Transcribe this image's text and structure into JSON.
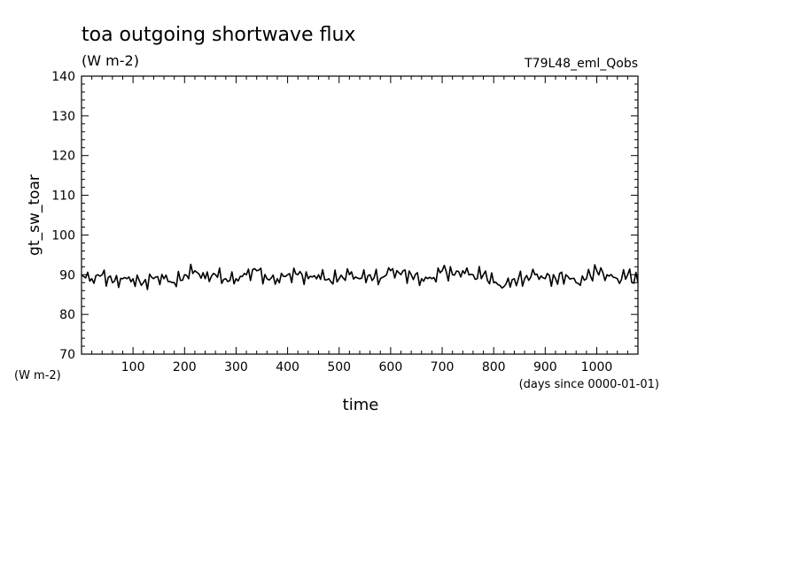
{
  "chart_data": {
    "type": "line",
    "title": "toa outgoing shortwave flux",
    "subtitle": "(W m-2)",
    "run_label": "T79L48_eml_Qobs",
    "ylabel": "gt_sw_toar",
    "yunit": "(W m-2)",
    "xlabel": "time",
    "xunit": "(days since 0000-01-01)",
    "xlim": [
      0,
      1080
    ],
    "ylim": [
      70,
      140
    ],
    "x_ticks": [
      100,
      200,
      300,
      400,
      500,
      600,
      700,
      800,
      900,
      1000
    ],
    "x_tick_labels": [
      "100",
      "200",
      "300",
      "400",
      "500",
      "600",
      "700",
      "800",
      "900",
      "1000"
    ],
    "y_ticks": [
      70,
      80,
      90,
      100,
      110,
      120,
      130,
      140
    ],
    "y_tick_labels": [
      "70",
      "80",
      "90",
      "100",
      "110",
      "120",
      "130",
      "140"
    ],
    "grid": false,
    "line_color": "#000000",
    "series": [
      {
        "x": [
          0,
          20,
          40,
          60,
          80,
          100,
          120,
          140,
          160,
          180,
          200,
          220,
          240,
          260,
          280,
          300,
          320,
          340,
          360,
          380,
          400,
          420,
          440,
          460,
          480,
          500,
          520,
          540,
          560,
          580,
          600,
          620,
          640,
          660,
          680,
          700,
          720,
          740,
          760,
          780,
          800,
          820,
          840,
          860,
          880,
          900,
          920,
          940,
          960,
          980,
          1000,
          1020,
          1040,
          1060,
          1080
        ],
        "values": [
          90,
          89,
          90,
          88,
          89,
          89,
          88,
          89,
          89,
          88,
          90,
          91,
          89,
          90,
          89,
          89,
          90,
          91,
          89,
          89,
          90,
          90,
          89,
          90,
          89,
          89,
          90,
          89,
          90,
          89,
          91,
          90,
          90,
          89,
          89,
          91,
          90,
          91,
          90,
          90,
          88,
          87,
          89,
          89,
          90,
          89,
          89,
          90,
          88,
          89,
          91,
          90,
          89,
          90,
          88
        ]
      }
    ]
  }
}
